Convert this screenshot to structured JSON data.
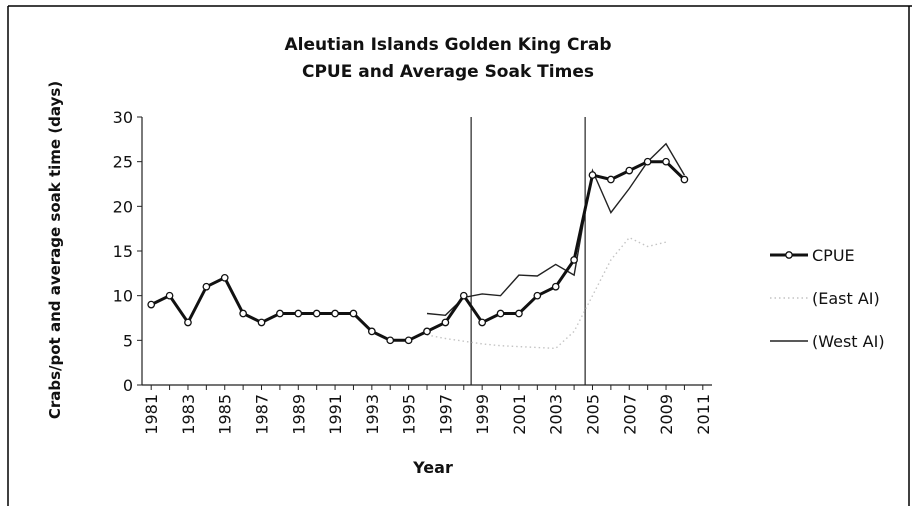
{
  "chart_data": {
    "type": "line",
    "title": [
      "Aleutian Islands Golden King Crab",
      "CPUE and Average Soak Times"
    ],
    "xlabel": "Year",
    "ylabel": "Crabs/pot and average soak time (days)",
    "xlim": [
      1980.5,
      2011.5
    ],
    "ylim": [
      0,
      30
    ],
    "y_ticks": [
      0,
      5,
      10,
      15,
      20,
      25,
      30
    ],
    "x_ticks": [
      1981,
      1983,
      1985,
      1987,
      1989,
      1991,
      1993,
      1995,
      1997,
      1999,
      2001,
      2003,
      2005,
      2007,
      2009,
      2011
    ],
    "reference_lines_x": [
      1998.4,
      2004.6
    ],
    "grid": false,
    "legend_position": "right",
    "series": [
      {
        "name": "CPUE",
        "color": "#111111",
        "style": "thick-marker",
        "x": [
          1981,
          1982,
          1983,
          1984,
          1985,
          1986,
          1987,
          1988,
          1989,
          1990,
          1991,
          1992,
          1993,
          1994,
          1995,
          1996,
          1997,
          1998,
          1999,
          2000,
          2001,
          2002,
          2003,
          2004,
          2005,
          2006,
          2007,
          2008,
          2009,
          2010
        ],
        "values": [
          9,
          10,
          7,
          11,
          12,
          8,
          7,
          8,
          8,
          8,
          8,
          8,
          6,
          5,
          5,
          6,
          7,
          10,
          7,
          8,
          8,
          10,
          11,
          14,
          23.5,
          23,
          24,
          25,
          25,
          23
        ]
      },
      {
        "name": "(East AI)",
        "color": "#c4c4c4",
        "style": "dotted",
        "x": [
          1996,
          1997,
          1998,
          1999,
          2000,
          2001,
          2002,
          2003,
          2004,
          2005,
          2006,
          2007,
          2008,
          2009
        ],
        "values": [
          5.6,
          5.2,
          4.9,
          4.6,
          4.4,
          4.3,
          4.2,
          4.1,
          6,
          10,
          14,
          16.5,
          15.5,
          16
        ]
      },
      {
        "name": "(West AI)",
        "color": "#222222",
        "style": "thin",
        "x": [
          1996,
          1997,
          1998,
          1999,
          2000,
          2001,
          2002,
          2003,
          2004,
          2005,
          2006,
          2007,
          2008,
          2009,
          2010
        ],
        "values": [
          8,
          7.8,
          9.8,
          10.2,
          10,
          12.3,
          12.2,
          13.5,
          12.3,
          24,
          19.3,
          22,
          25,
          27,
          23.5
        ]
      }
    ]
  }
}
